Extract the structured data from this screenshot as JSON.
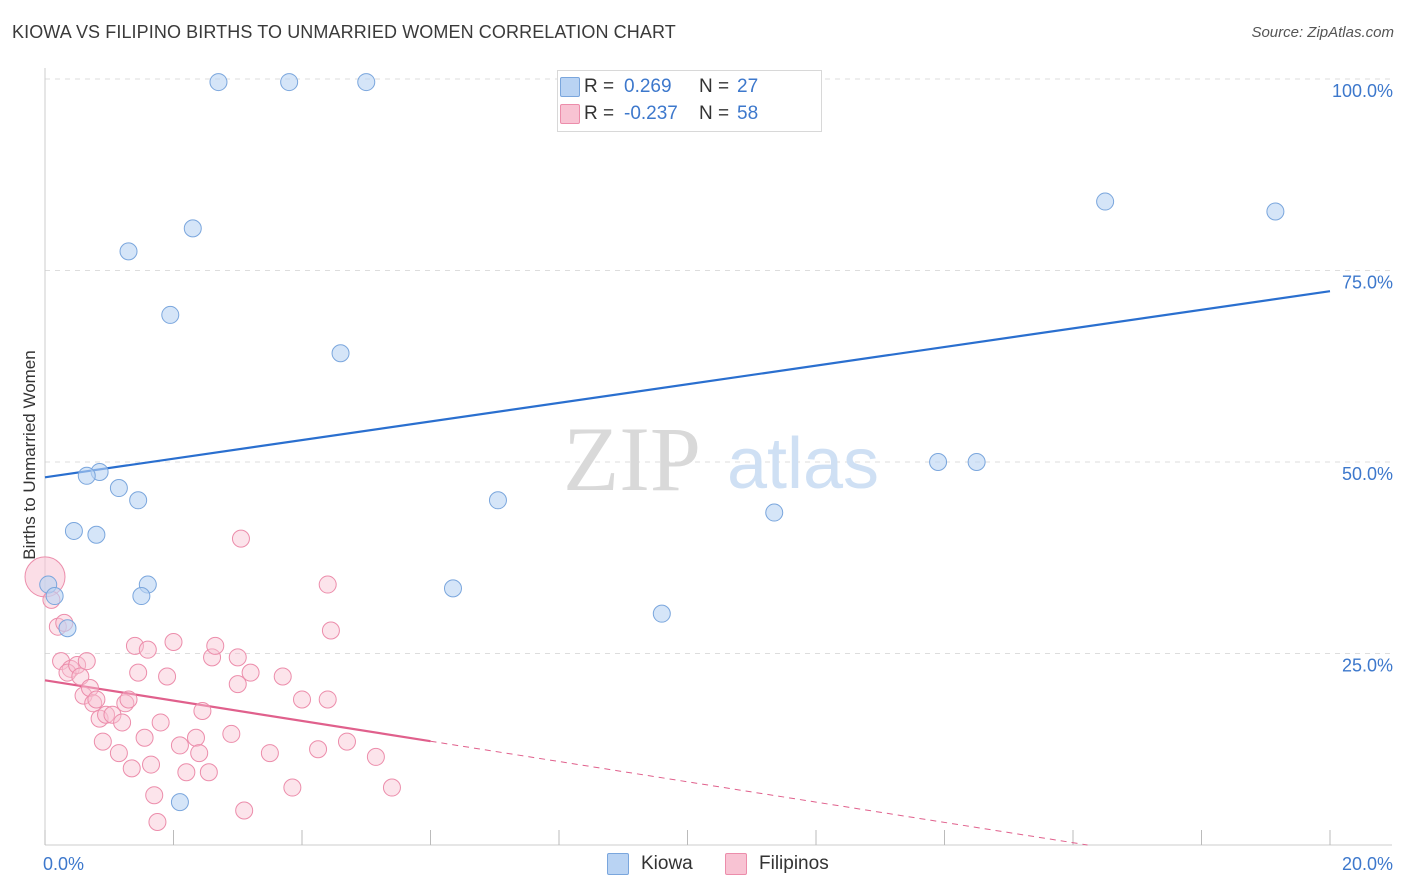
{
  "title": "KIOWA VS FILIPINO BIRTHS TO UNMARRIED WOMEN CORRELATION CHART",
  "source": "Source: ZipAtlas.com",
  "watermark": {
    "zip": "ZIP",
    "atlas": "atlas"
  },
  "colors": {
    "kiowa_fill": "#b9d3f3",
    "kiowa_stroke": "#7aa6dd",
    "kiowa_line": "#2a6fcf",
    "filipinos_fill": "#f8c3d3",
    "filipinos_stroke": "#ec8dab",
    "filipinos_line": "#e0608c",
    "axis_label": "#3d78cc",
    "grid": "#dddddd"
  },
  "legend": {
    "kiowa": {
      "r_label": "R =",
      "r_value": "0.269",
      "n_label": "N =",
      "n_value": "27"
    },
    "filipinos": {
      "r_label": "R =",
      "r_value": "-0.237",
      "n_label": "N =",
      "n_value": "58"
    }
  },
  "bottom_legend": {
    "kiowa": "Kiowa",
    "filipinos": "Filipinos"
  },
  "chart_data": {
    "type": "scatter",
    "title": "KIOWA VS FILIPINO BIRTHS TO UNMARRIED WOMEN CORRELATION CHART",
    "xlabel": "",
    "ylabel": "Births to Unmarried Women",
    "xlim": [
      0,
      20
    ],
    "ylim": [
      0,
      100
    ],
    "x_ticks": [
      0,
      2,
      4,
      6,
      8,
      10,
      12,
      14,
      16,
      18,
      20
    ],
    "x_tick_labels": {
      "0": "0.0%",
      "20": "20.0%"
    },
    "y_ticks": [
      25,
      50,
      75,
      100
    ],
    "y_tick_labels": [
      "25.0%",
      "50.0%",
      "75.0%",
      "100.0%"
    ],
    "grid": true,
    "legend_position": "top-center",
    "series": [
      {
        "name": "Kiowa",
        "r": 0.269,
        "n": 27,
        "trend": {
          "x0": 0,
          "y0": 48.0,
          "x1": 20,
          "y1": 72.3,
          "solid_to": 20
        },
        "points": [
          {
            "x": 2.7,
            "y": 99.6
          },
          {
            "x": 3.8,
            "y": 99.6
          },
          {
            "x": 5.0,
            "y": 99.6
          },
          {
            "x": 2.3,
            "y": 80.5
          },
          {
            "x": 1.3,
            "y": 77.5
          },
          {
            "x": 1.95,
            "y": 69.2
          },
          {
            "x": 4.6,
            "y": 64.2
          },
          {
            "x": 16.5,
            "y": 84.0
          },
          {
            "x": 19.15,
            "y": 82.7
          },
          {
            "x": 13.9,
            "y": 50.0
          },
          {
            "x": 14.5,
            "y": 50.0
          },
          {
            "x": 0.85,
            "y": 48.7
          },
          {
            "x": 0.65,
            "y": 48.2
          },
          {
            "x": 1.15,
            "y": 46.6
          },
          {
            "x": 1.45,
            "y": 45.0
          },
          {
            "x": 7.05,
            "y": 45.0
          },
          {
            "x": 11.35,
            "y": 43.4
          },
          {
            "x": 0.45,
            "y": 41.0
          },
          {
            "x": 0.8,
            "y": 40.5
          },
          {
            "x": 1.6,
            "y": 34.0
          },
          {
            "x": 1.5,
            "y": 32.5
          },
          {
            "x": 6.35,
            "y": 33.5
          },
          {
            "x": 9.6,
            "y": 30.2
          },
          {
            "x": 0.05,
            "y": 34.0
          },
          {
            "x": 0.15,
            "y": 32.5
          },
          {
            "x": 0.35,
            "y": 28.3
          },
          {
            "x": 2.1,
            "y": 5.6
          }
        ]
      },
      {
        "name": "Filipinos",
        "r": -0.237,
        "n": 58,
        "trend": {
          "x0": 0,
          "y0": 21.5,
          "x1": 20,
          "y1": -5.0,
          "solid_to": 6.0
        },
        "points": [
          {
            "x": 0.0,
            "y": 35.0
          },
          {
            "x": 0.1,
            "y": 32.0
          },
          {
            "x": 0.2,
            "y": 28.5
          },
          {
            "x": 0.3,
            "y": 29.0
          },
          {
            "x": 0.25,
            "y": 24.0
          },
          {
            "x": 0.4,
            "y": 23.0
          },
          {
            "x": 0.35,
            "y": 22.5
          },
          {
            "x": 0.5,
            "y": 23.5
          },
          {
            "x": 0.55,
            "y": 22.0
          },
          {
            "x": 0.6,
            "y": 19.5
          },
          {
            "x": 0.65,
            "y": 24.0
          },
          {
            "x": 0.7,
            "y": 20.5
          },
          {
            "x": 0.75,
            "y": 18.5
          },
          {
            "x": 0.8,
            "y": 19.0
          },
          {
            "x": 0.85,
            "y": 16.5
          },
          {
            "x": 0.9,
            "y": 13.5
          },
          {
            "x": 0.95,
            "y": 17.0
          },
          {
            "x": 1.05,
            "y": 17.0
          },
          {
            "x": 1.15,
            "y": 12.0
          },
          {
            "x": 1.25,
            "y": 18.5
          },
          {
            "x": 1.3,
            "y": 19.0
          },
          {
            "x": 1.35,
            "y": 10.0
          },
          {
            "x": 1.4,
            "y": 26.0
          },
          {
            "x": 1.45,
            "y": 22.5
          },
          {
            "x": 1.55,
            "y": 14.0
          },
          {
            "x": 1.6,
            "y": 25.5
          },
          {
            "x": 1.65,
            "y": 10.5
          },
          {
            "x": 1.7,
            "y": 6.5
          },
          {
            "x": 1.75,
            "y": 3.0
          },
          {
            "x": 1.8,
            "y": 16.0
          },
          {
            "x": 1.9,
            "y": 22.0
          },
          {
            "x": 2.0,
            "y": 26.5
          },
          {
            "x": 2.1,
            "y": 13.0
          },
          {
            "x": 2.2,
            "y": 9.5
          },
          {
            "x": 2.35,
            "y": 14.0
          },
          {
            "x": 2.4,
            "y": 12.0
          },
          {
            "x": 2.45,
            "y": 17.5
          },
          {
            "x": 2.55,
            "y": 9.5
          },
          {
            "x": 2.6,
            "y": 24.5
          },
          {
            "x": 2.65,
            "y": 26.0
          },
          {
            "x": 3.05,
            "y": 40.0
          },
          {
            "x": 3.0,
            "y": 21.0
          },
          {
            "x": 3.1,
            "y": 4.5
          },
          {
            "x": 3.0,
            "y": 24.5
          },
          {
            "x": 3.2,
            "y": 22.5
          },
          {
            "x": 2.9,
            "y": 14.5
          },
          {
            "x": 3.5,
            "y": 12.0
          },
          {
            "x": 3.7,
            "y": 22.0
          },
          {
            "x": 3.85,
            "y": 7.5
          },
          {
            "x": 4.0,
            "y": 19.0
          },
          {
            "x": 4.25,
            "y": 12.5
          },
          {
            "x": 4.4,
            "y": 19.0
          },
          {
            "x": 4.4,
            "y": 34.0
          },
          {
            "x": 4.45,
            "y": 28.0
          },
          {
            "x": 4.7,
            "y": 13.5
          },
          {
            "x": 5.15,
            "y": 11.5
          },
          {
            "x": 5.4,
            "y": 7.5
          },
          {
            "x": 1.2,
            "y": 16.0
          }
        ]
      }
    ]
  }
}
